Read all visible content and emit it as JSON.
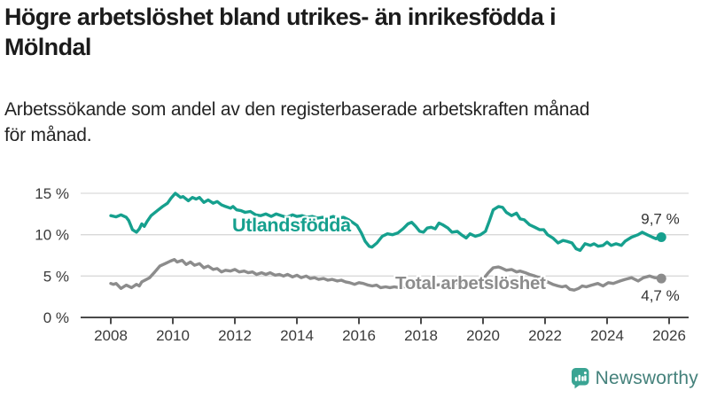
{
  "header": {
    "title_lines": [
      "Högre arbetslöshet bland utrikes- än inrikesfödda i",
      "Mölndal"
    ],
    "subtitle_lines": [
      "Arbetssökande som andel av den registerbaserade arbetskraften månad",
      "för månad."
    ]
  },
  "chart_data": {
    "type": "line",
    "title": "Högre arbetslöshet bland utrikes- än inrikesfödda i Mölndal",
    "subtitle": "Arbetssökande som andel av den registerbaserade arbetskraften månad för månad.",
    "x_unit": "year (monthly data)",
    "xlim": [
      2008,
      2026.6
    ],
    "ylim": [
      0,
      15
    ],
    "grid": "horizontal",
    "legend_position": "inline-labels",
    "xticks": [
      {
        "value": 2008,
        "label": "2008"
      },
      {
        "value": 2010,
        "label": "2010"
      },
      {
        "value": 2012,
        "label": "2012"
      },
      {
        "value": 2014,
        "label": "2014"
      },
      {
        "value": 2016,
        "label": "2016"
      },
      {
        "value": 2018,
        "label": "2018"
      },
      {
        "value": 2020,
        "label": "2020"
      },
      {
        "value": 2022,
        "label": "2022"
      },
      {
        "value": 2024,
        "label": "2024"
      },
      {
        "value": 2026,
        "label": "2026"
      }
    ],
    "yticks": [
      {
        "value": 0,
        "label": "0 %"
      },
      {
        "value": 5,
        "label": "5 %"
      },
      {
        "value": 10,
        "label": "10 %"
      },
      {
        "value": 15,
        "label": "15 %"
      }
    ],
    "series": [
      {
        "id": "utlandsfodda",
        "name": "Utlandsfödda",
        "color": "#16a08e",
        "end_label": "9,7 %",
        "end_value": 9.7,
        "points": [
          [
            2008.0,
            12.3
          ],
          [
            2008.17,
            12.15
          ],
          [
            2008.33,
            12.4
          ],
          [
            2008.5,
            12.1
          ],
          [
            2008.58,
            11.7
          ],
          [
            2008.7,
            10.6
          ],
          [
            2008.83,
            10.3
          ],
          [
            2008.92,
            10.7
          ],
          [
            2009.0,
            11.3
          ],
          [
            2009.08,
            11.0
          ],
          [
            2009.17,
            11.6
          ],
          [
            2009.3,
            12.3
          ],
          [
            2009.5,
            12.9
          ],
          [
            2009.67,
            13.4
          ],
          [
            2009.83,
            13.8
          ],
          [
            2009.94,
            14.4
          ],
          [
            2010.08,
            15.0
          ],
          [
            2010.25,
            14.5
          ],
          [
            2010.33,
            14.6
          ],
          [
            2010.5,
            14.1
          ],
          [
            2010.63,
            14.5
          ],
          [
            2010.75,
            14.3
          ],
          [
            2010.86,
            14.5
          ],
          [
            2011.0,
            13.9
          ],
          [
            2011.14,
            14.2
          ],
          [
            2011.3,
            13.8
          ],
          [
            2011.43,
            14.0
          ],
          [
            2011.57,
            13.6
          ],
          [
            2011.7,
            13.4
          ],
          [
            2011.86,
            13.2
          ],
          [
            2011.94,
            13.4
          ],
          [
            2012.06,
            13.0
          ],
          [
            2012.2,
            12.9
          ],
          [
            2012.33,
            12.7
          ],
          [
            2012.5,
            12.8
          ],
          [
            2012.67,
            12.4
          ],
          [
            2012.83,
            12.3
          ],
          [
            2013.0,
            12.5
          ],
          [
            2013.17,
            12.2
          ],
          [
            2013.33,
            12.5
          ],
          [
            2013.5,
            12.3
          ],
          [
            2013.67,
            12.1
          ],
          [
            2013.86,
            12.4
          ],
          [
            2014.0,
            12.2
          ],
          [
            2014.17,
            12.3
          ],
          [
            2014.33,
            12.1
          ],
          [
            2014.5,
            12.2
          ],
          [
            2014.67,
            12.0
          ],
          [
            2014.83,
            12.1
          ],
          [
            2015.0,
            12.0
          ],
          [
            2015.17,
            12.2
          ],
          [
            2015.33,
            12.0
          ],
          [
            2015.5,
            12.1
          ],
          [
            2015.67,
            11.8
          ],
          [
            2015.83,
            11.4
          ],
          [
            2015.94,
            11.1
          ],
          [
            2016.08,
            10.2
          ],
          [
            2016.2,
            9.2
          ],
          [
            2016.33,
            8.6
          ],
          [
            2016.42,
            8.5
          ],
          [
            2016.58,
            9.0
          ],
          [
            2016.75,
            9.8
          ],
          [
            2016.92,
            10.1
          ],
          [
            2017.08,
            10.0
          ],
          [
            2017.25,
            10.2
          ],
          [
            2017.42,
            10.7
          ],
          [
            2017.58,
            11.3
          ],
          [
            2017.7,
            11.5
          ],
          [
            2017.83,
            11.0
          ],
          [
            2017.96,
            10.4
          ],
          [
            2018.08,
            10.3
          ],
          [
            2018.2,
            10.8
          ],
          [
            2018.33,
            10.9
          ],
          [
            2018.46,
            10.7
          ],
          [
            2018.58,
            11.4
          ],
          [
            2018.7,
            11.2
          ],
          [
            2018.87,
            10.8
          ],
          [
            2019.0,
            10.3
          ],
          [
            2019.17,
            10.4
          ],
          [
            2019.3,
            10.0
          ],
          [
            2019.46,
            9.6
          ],
          [
            2019.58,
            10.1
          ],
          [
            2019.75,
            9.8
          ],
          [
            2019.92,
            10.0
          ],
          [
            2020.08,
            10.4
          ],
          [
            2020.2,
            11.6
          ],
          [
            2020.33,
            13.0
          ],
          [
            2020.5,
            13.4
          ],
          [
            2020.63,
            13.3
          ],
          [
            2020.75,
            12.7
          ],
          [
            2020.92,
            12.3
          ],
          [
            2021.08,
            12.6
          ],
          [
            2021.2,
            11.9
          ],
          [
            2021.33,
            11.8
          ],
          [
            2021.5,
            11.2
          ],
          [
            2021.67,
            10.9
          ],
          [
            2021.83,
            10.6
          ],
          [
            2021.96,
            10.6
          ],
          [
            2022.08,
            10.0
          ],
          [
            2022.25,
            9.6
          ],
          [
            2022.42,
            9.0
          ],
          [
            2022.58,
            9.3
          ],
          [
            2022.7,
            9.2
          ],
          [
            2022.87,
            9.0
          ],
          [
            2023.0,
            8.3
          ],
          [
            2023.13,
            8.1
          ],
          [
            2023.29,
            8.9
          ],
          [
            2023.46,
            8.7
          ],
          [
            2023.58,
            8.9
          ],
          [
            2023.71,
            8.6
          ],
          [
            2023.87,
            8.7
          ],
          [
            2024.0,
            9.1
          ],
          [
            2024.13,
            8.7
          ],
          [
            2024.29,
            8.9
          ],
          [
            2024.46,
            8.7
          ],
          [
            2024.58,
            9.2
          ],
          [
            2024.79,
            9.7
          ],
          [
            2025.0,
            10.0
          ],
          [
            2025.13,
            10.3
          ],
          [
            2025.29,
            10.0
          ],
          [
            2025.46,
            9.7
          ],
          [
            2025.58,
            9.5
          ],
          [
            2025.67,
            9.8
          ],
          [
            2025.75,
            9.7
          ]
        ]
      },
      {
        "id": "total",
        "name": "Total arbetslöshet",
        "color": "#8c8c8c",
        "end_label": "4,7 %",
        "end_value": 4.7,
        "points": [
          [
            2008.0,
            4.1
          ],
          [
            2008.08,
            4.0
          ],
          [
            2008.17,
            4.1
          ],
          [
            2008.33,
            3.5
          ],
          [
            2008.5,
            3.9
          ],
          [
            2008.67,
            3.6
          ],
          [
            2008.83,
            4.0
          ],
          [
            2008.92,
            3.8
          ],
          [
            2009.0,
            4.3
          ],
          [
            2009.25,
            4.8
          ],
          [
            2009.42,
            5.5
          ],
          [
            2009.58,
            6.2
          ],
          [
            2009.75,
            6.5
          ],
          [
            2009.92,
            6.8
          ],
          [
            2010.05,
            7.0
          ],
          [
            2010.14,
            6.7
          ],
          [
            2010.3,
            6.9
          ],
          [
            2010.43,
            6.4
          ],
          [
            2010.57,
            6.7
          ],
          [
            2010.7,
            6.3
          ],
          [
            2010.86,
            6.5
          ],
          [
            2011.0,
            6.0
          ],
          [
            2011.14,
            6.2
          ],
          [
            2011.3,
            5.8
          ],
          [
            2011.43,
            5.9
          ],
          [
            2011.57,
            5.5
          ],
          [
            2011.7,
            5.7
          ],
          [
            2011.86,
            5.6
          ],
          [
            2012.0,
            5.8
          ],
          [
            2012.14,
            5.5
          ],
          [
            2012.3,
            5.6
          ],
          [
            2012.43,
            5.4
          ],
          [
            2012.57,
            5.5
          ],
          [
            2012.7,
            5.2
          ],
          [
            2012.86,
            5.4
          ],
          [
            2013.0,
            5.2
          ],
          [
            2013.14,
            5.4
          ],
          [
            2013.3,
            5.1
          ],
          [
            2013.43,
            5.2
          ],
          [
            2013.57,
            5.0
          ],
          [
            2013.7,
            5.2
          ],
          [
            2013.86,
            4.9
          ],
          [
            2014.0,
            5.1
          ],
          [
            2014.14,
            4.8
          ],
          [
            2014.3,
            5.0
          ],
          [
            2014.43,
            4.7
          ],
          [
            2014.57,
            4.8
          ],
          [
            2014.7,
            4.6
          ],
          [
            2014.86,
            4.7
          ],
          [
            2015.0,
            4.5
          ],
          [
            2015.14,
            4.6
          ],
          [
            2015.3,
            4.4
          ],
          [
            2015.43,
            4.5
          ],
          [
            2015.57,
            4.3
          ],
          [
            2015.7,
            4.2
          ],
          [
            2015.86,
            4.0
          ],
          [
            2016.0,
            4.2
          ],
          [
            2016.14,
            4.1
          ],
          [
            2016.3,
            3.9
          ],
          [
            2016.43,
            3.8
          ],
          [
            2016.57,
            3.9
          ],
          [
            2016.7,
            3.6
          ],
          [
            2016.86,
            3.7
          ],
          [
            2017.0,
            3.6
          ],
          [
            2017.14,
            3.7
          ],
          [
            2017.3,
            3.6
          ],
          [
            2017.46,
            3.7
          ],
          [
            2017.58,
            3.8
          ],
          [
            2017.75,
            3.7
          ],
          [
            2017.92,
            3.8
          ],
          [
            2018.08,
            3.9
          ],
          [
            2018.2,
            3.8
          ],
          [
            2018.37,
            4.0
          ],
          [
            2018.5,
            3.9
          ],
          [
            2018.67,
            4.0
          ],
          [
            2018.83,
            4.1
          ],
          [
            2018.96,
            4.0
          ],
          [
            2019.08,
            4.2
          ],
          [
            2019.25,
            4.1
          ],
          [
            2019.42,
            4.3
          ],
          [
            2019.58,
            4.4
          ],
          [
            2019.7,
            4.3
          ],
          [
            2019.87,
            4.5
          ],
          [
            2020.0,
            4.6
          ],
          [
            2020.17,
            5.4
          ],
          [
            2020.33,
            6.0
          ],
          [
            2020.5,
            6.1
          ],
          [
            2020.58,
            6.0
          ],
          [
            2020.75,
            5.7
          ],
          [
            2020.92,
            5.8
          ],
          [
            2021.08,
            5.5
          ],
          [
            2021.2,
            5.6
          ],
          [
            2021.37,
            5.4
          ],
          [
            2021.5,
            5.2
          ],
          [
            2021.67,
            5.0
          ],
          [
            2021.83,
            4.8
          ],
          [
            2021.96,
            4.6
          ],
          [
            2022.08,
            4.3
          ],
          [
            2022.25,
            4.0
          ],
          [
            2022.42,
            3.8
          ],
          [
            2022.55,
            3.7
          ],
          [
            2022.67,
            3.8
          ],
          [
            2022.8,
            3.4
          ],
          [
            2022.94,
            3.3
          ],
          [
            2023.08,
            3.5
          ],
          [
            2023.2,
            3.8
          ],
          [
            2023.33,
            3.7
          ],
          [
            2023.5,
            3.9
          ],
          [
            2023.7,
            4.1
          ],
          [
            2023.87,
            3.8
          ],
          [
            2024.04,
            4.2
          ],
          [
            2024.2,
            4.1
          ],
          [
            2024.42,
            4.4
          ],
          [
            2024.58,
            4.6
          ],
          [
            2024.79,
            4.8
          ],
          [
            2025.0,
            4.4
          ],
          [
            2025.17,
            4.8
          ],
          [
            2025.37,
            5.0
          ],
          [
            2025.54,
            4.8
          ],
          [
            2025.75,
            4.7
          ]
        ]
      }
    ],
    "colors": {
      "grid": "#d9d9d9",
      "axis": "#4a4a4a",
      "tick_label": "#3a3a3a",
      "end_value_label": "#333333"
    }
  },
  "footer": {
    "brand": "Newsworthy",
    "logo_icon_color": "#3aa493",
    "logo_text_color": "#44817b"
  }
}
